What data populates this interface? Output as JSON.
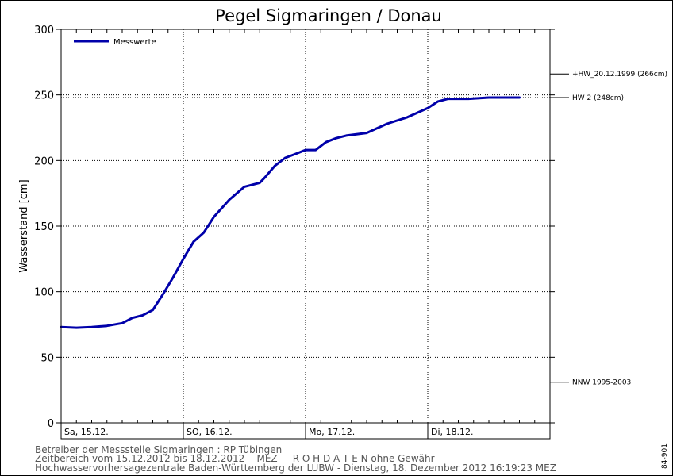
{
  "chart_data": {
    "type": "line",
    "title": "Pegel Sigmaringen / Donau",
    "ylabel": "Wasserstand [cm]",
    "ylim": [
      0,
      300
    ],
    "yticks": [
      0,
      50,
      100,
      150,
      200,
      250,
      300
    ],
    "xlim": [
      "2012-12-15T00:00",
      "2012-12-19T00:00"
    ],
    "day_labels": [
      "Sa, 15.12.",
      "SO, 16.12.",
      "Mo, 17.12.",
      "Di, 18.12."
    ],
    "grid": true,
    "legend_position": "top-left",
    "series": [
      {
        "name": "Messwerte",
        "color": "#0000aa",
        "x": [
          "2012-12-15T00:00",
          "2012-12-15T03:00",
          "2012-12-15T06:00",
          "2012-12-15T09:00",
          "2012-12-15T12:00",
          "2012-12-15T14:00",
          "2012-12-15T16:00",
          "2012-12-15T18:00",
          "2012-12-15T20:00",
          "2012-12-15T22:00",
          "2012-12-16T00:00",
          "2012-12-16T02:00",
          "2012-12-16T04:00",
          "2012-12-16T06:00",
          "2012-12-16T09:00",
          "2012-12-16T12:00",
          "2012-12-16T15:00",
          "2012-12-16T16:00",
          "2012-12-16T18:00",
          "2012-12-16T20:00",
          "2012-12-16T22:00",
          "2012-12-17T00:00",
          "2012-12-17T02:00",
          "2012-12-17T04:00",
          "2012-12-17T06:00",
          "2012-12-17T08:00",
          "2012-12-17T12:00",
          "2012-12-17T16:00",
          "2012-12-17T20:00",
          "2012-12-18T00:00",
          "2012-12-18T02:00",
          "2012-12-18T04:00",
          "2012-12-18T08:00",
          "2012-12-18T12:00",
          "2012-12-18T16:00",
          "2012-12-18T18:00"
        ],
        "values": [
          73,
          72.5,
          73,
          74,
          76,
          80,
          82,
          86,
          98,
          111,
          125,
          138,
          145,
          157,
          170,
          180,
          183,
          187,
          196,
          202,
          205,
          208,
          208,
          214,
          217,
          219,
          221,
          228,
          233,
          240,
          245,
          247,
          247,
          248,
          248,
          248
        ]
      }
    ],
    "reference_lines": [
      {
        "label": "+HW_20.12.1999 (266cm)",
        "value": 266
      },
      {
        "label": "HW 2 (248cm)",
        "value": 248
      },
      {
        "label": "NNW 1995-2003",
        "value": 31
      }
    ]
  },
  "footer": {
    "line1": "Betreiber der Messstelle Sigmaringen : RP Tübingen",
    "line2": "Zeitbereich vom 15.12.2012 bis 18.12.2012    MEZ     R O H D A T E N ohne Gewähr",
    "line3": "Hochwasservorhersagezentrale Baden-Württemberg der LUBW - Dienstag, 18. Dezember 2012 16:19:23 MEZ"
  },
  "side_code": "84-901"
}
